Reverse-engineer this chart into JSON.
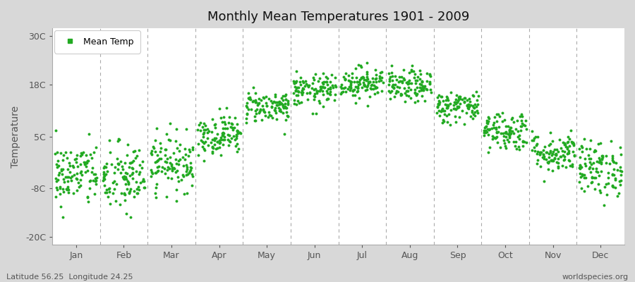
{
  "title": "Monthly Mean Temperatures 1901 - 2009",
  "ylabel": "Temperature",
  "xlabel_months": [
    "Jan",
    "Feb",
    "Mar",
    "Apr",
    "May",
    "Jun",
    "Jul",
    "Aug",
    "Sep",
    "Oct",
    "Nov",
    "Dec"
  ],
  "ylim": [
    -22,
    32
  ],
  "yticks": [
    -20,
    -8,
    5,
    18,
    30
  ],
  "ytick_labels": [
    "-20C",
    "-8C",
    "5C",
    "18C",
    "30C"
  ],
  "dot_color": "#22aa22",
  "dot_size": 8,
  "figure_bg_color": "#d8d8d8",
  "plot_bg_color": "#ffffff",
  "legend_label": "Mean Temp",
  "lat_lon_text": "Latitude 56.25  Longitude 24.25",
  "watermark": "worldspecies.org",
  "monthly_means": [
    -4.5,
    -5.5,
    -1.5,
    5.5,
    12.5,
    16.5,
    18.5,
    17.5,
    12.5,
    6.5,
    1.0,
    -3.0
  ],
  "monthly_stds": [
    4.0,
    4.5,
    3.5,
    2.5,
    2.0,
    2.0,
    2.0,
    2.0,
    2.0,
    2.5,
    2.5,
    3.5
  ],
  "n_years": 109,
  "seed": 42
}
